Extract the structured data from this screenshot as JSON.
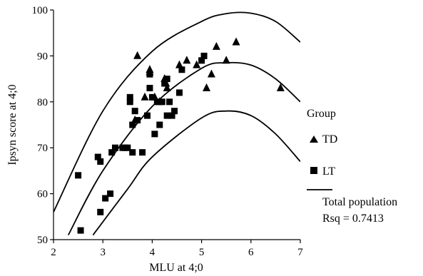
{
  "chart_data": {
    "type": "scatter",
    "xlabel": "MLU at 4;0",
    "ylabel": "Ipsyn score at 4;0",
    "xlim": [
      2,
      7
    ],
    "ylim": [
      50,
      100
    ],
    "xticks": [
      "2",
      "3",
      "4",
      "5",
      "6",
      "7"
    ],
    "yticks": [
      "50",
      "60",
      "70",
      "80",
      "90",
      "100"
    ],
    "grid": false,
    "legend": {
      "placement": "right",
      "title": "Group",
      "entries": [
        "TD",
        "LT",
        "Total population"
      ],
      "fit_stat": "Rsq = 0.7413"
    },
    "series": [
      {
        "name": "TD",
        "marker": "triangle",
        "points": [
          [
            3.7,
            90
          ],
          [
            3.95,
            87
          ],
          [
            3.95,
            86.5
          ],
          [
            4.05,
            81
          ],
          [
            4.15,
            80
          ],
          [
            4.25,
            85
          ],
          [
            4.28,
            84
          ],
          [
            4.3,
            83
          ],
          [
            4.55,
            88
          ],
          [
            4.7,
            89
          ],
          [
            4.9,
            88
          ],
          [
            5.1,
            83
          ],
          [
            5.2,
            86
          ],
          [
            5.3,
            92
          ],
          [
            5.5,
            89
          ],
          [
            5.7,
            93
          ],
          [
            6.6,
            83
          ],
          [
            3.65,
            76
          ],
          [
            3.85,
            81
          ]
        ]
      },
      {
        "name": "LT",
        "marker": "square",
        "points": [
          [
            2.5,
            64
          ],
          [
            2.55,
            52
          ],
          [
            2.9,
            68
          ],
          [
            2.95,
            67
          ],
          [
            2.95,
            56
          ],
          [
            3.05,
            59
          ],
          [
            3.15,
            60
          ],
          [
            3.18,
            69
          ],
          [
            3.25,
            70
          ],
          [
            3.4,
            70
          ],
          [
            3.45,
            70
          ],
          [
            3.5,
            70
          ],
          [
            3.55,
            81
          ],
          [
            3.55,
            80
          ],
          [
            3.6,
            75
          ],
          [
            3.6,
            69
          ],
          [
            3.65,
            78
          ],
          [
            3.7,
            76
          ],
          [
            3.8,
            69
          ],
          [
            3.9,
            77
          ],
          [
            3.95,
            83
          ],
          [
            3.95,
            86
          ],
          [
            4.0,
            81
          ],
          [
            4.05,
            73
          ],
          [
            4.1,
            80
          ],
          [
            4.15,
            75
          ],
          [
            4.2,
            80
          ],
          [
            4.25,
            84
          ],
          [
            4.3,
            77
          ],
          [
            4.35,
            80
          ],
          [
            4.4,
            77
          ],
          [
            4.45,
            78
          ],
          [
            4.55,
            82
          ],
          [
            4.6,
            87
          ],
          [
            5.0,
            89
          ],
          [
            5.05,
            90
          ],
          [
            4.3,
            85
          ]
        ]
      }
    ],
    "fit_curves": [
      {
        "name": "Total population",
        "role": "upper",
        "points": [
          [
            2.0,
            56
          ],
          [
            3.0,
            78
          ],
          [
            4.0,
            91
          ],
          [
            5.0,
            97.5
          ],
          [
            5.5,
            99.2
          ],
          [
            6.0,
            99.3
          ],
          [
            6.5,
            97.5
          ],
          [
            7.0,
            93
          ]
        ]
      },
      {
        "name": "Total population",
        "role": "fit",
        "points": [
          [
            2.3,
            51
          ],
          [
            3.0,
            65
          ],
          [
            4.0,
            79
          ],
          [
            5.0,
            87.3
          ],
          [
            5.5,
            88.5
          ],
          [
            6.0,
            88
          ],
          [
            6.5,
            85
          ],
          [
            7.0,
            80
          ]
        ]
      },
      {
        "name": "Total population",
        "role": "lower",
        "points": [
          [
            2.8,
            51
          ],
          [
            3.5,
            61
          ],
          [
            4.0,
            68
          ],
          [
            5.0,
            76.5
          ],
          [
            5.5,
            78
          ],
          [
            6.0,
            77
          ],
          [
            6.5,
            73
          ],
          [
            7.0,
            67
          ]
        ]
      }
    ]
  }
}
